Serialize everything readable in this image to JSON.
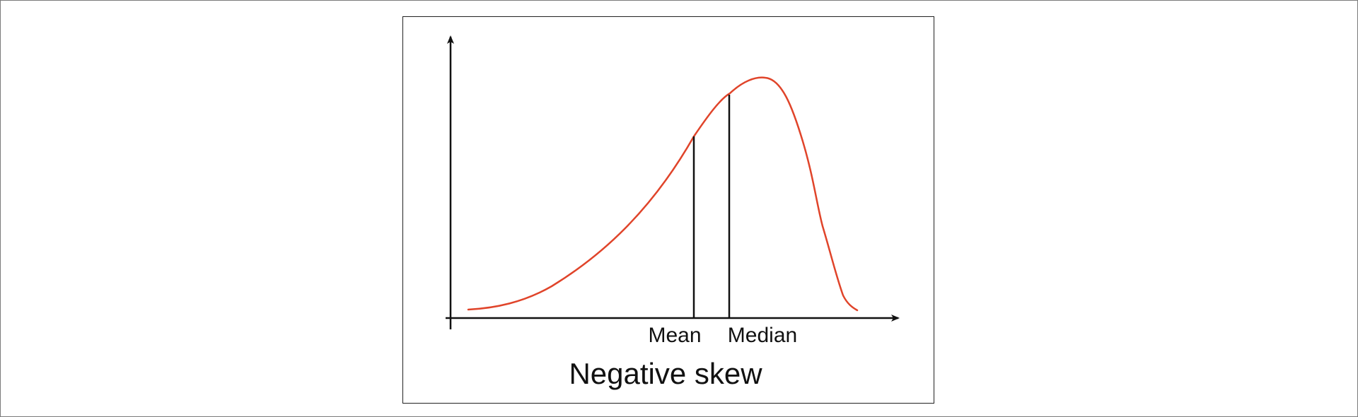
{
  "labels": {
    "mean": "Mean",
    "median": "Median",
    "caption": "Negative skew"
  },
  "colors": {
    "curve": "#e0442a",
    "axes": "#111111",
    "text": "#111111"
  }
}
